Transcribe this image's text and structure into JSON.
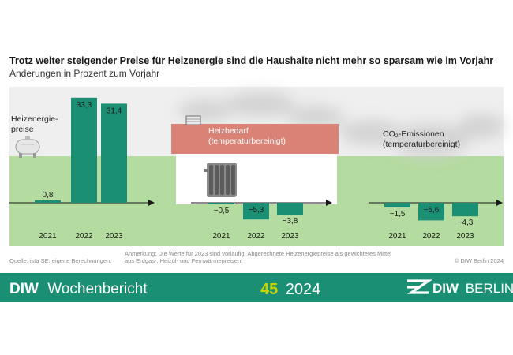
{
  "title": "Trotz weiter steigender Preise für Heizenergie sind die Haushalte nicht mehr so sparsam wie im Vorjahr",
  "subtitle": "Änderungen in Prozent zum Vorjahr",
  "panels": [
    {
      "label_lines": [
        "Heizenergie-",
        "preise"
      ]
    },
    {
      "label_lines": [
        "Heizbedarf",
        "(temperaturbereinigt)"
      ]
    },
    {
      "label_lines": [
        "CO₂-Emissionen",
        "(temperaturbereinigt)"
      ]
    }
  ],
  "notes": {
    "source": "Quelle: ista SE; eigene Berechnungen.",
    "remark_lines": [
      "Anmerkung: Die Werte für 2023 sind vorläufig. Abgerechnete Heizenergiepreise als gewichtetes Mittel",
      "aus Erdgas-, Heizöl- und Fernwärmepreisen."
    ],
    "copyright": "© DIW Berlin 2024"
  },
  "footer": {
    "brand_bold": "DIW",
    "brand_text": "Wochenbericht",
    "issue_number": "45",
    "issue_year": "2024",
    "logo_bold": "DIW",
    "logo_text": "BERLIN"
  },
  "colors": {
    "bar": "#1a8f73",
    "band": "#1a8f73",
    "issue_number": "#c8d400",
    "ground": "#b4dba0",
    "sky": "#efefef",
    "roof": "#d98275",
    "house": "#ffffff"
  },
  "chart_data": [
    {
      "type": "bar",
      "name": "Heizenergiepreise",
      "categories": [
        "2021",
        "2022",
        "2023"
      ],
      "values": [
        0.8,
        33.3,
        31.4
      ],
      "value_labels": [
        "0,8",
        "33,3",
        "31,4"
      ]
    },
    {
      "type": "bar",
      "name": "Heizbedarf (temperaturbereinigt)",
      "categories": [
        "2021",
        "2022",
        "2023"
      ],
      "values": [
        -0.5,
        -5.3,
        -3.8
      ],
      "value_labels": [
        "−0,5",
        "−5,3",
        "−3,8"
      ]
    },
    {
      "type": "bar",
      "name": "CO₂-Emissionen (temperaturbereinigt)",
      "categories": [
        "2021",
        "2022",
        "2023"
      ],
      "values": [
        -1.5,
        -5.6,
        -4.3
      ],
      "value_labels": [
        "−1,5",
        "−5,6",
        "−4,3"
      ]
    }
  ]
}
